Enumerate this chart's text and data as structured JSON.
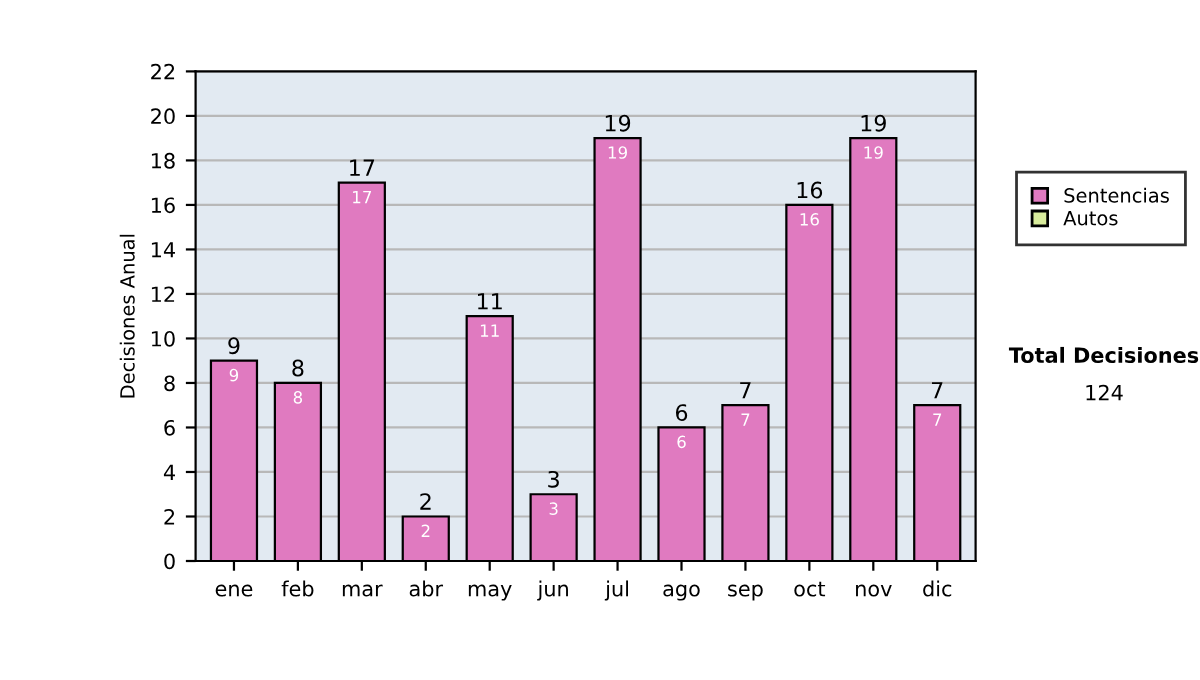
{
  "chart_data": {
    "type": "bar",
    "ylabel": "Decisiones Anual",
    "categories": [
      "ene",
      "feb",
      "mar",
      "abr",
      "may",
      "jun",
      "jul",
      "ago",
      "sep",
      "oct",
      "nov",
      "dic"
    ],
    "series": [
      {
        "name": "Sentencias",
        "color": "#e07ac0",
        "values": [
          9,
          8,
          17,
          2,
          11,
          3,
          19,
          6,
          7,
          16,
          19,
          7
        ]
      },
      {
        "name": "Autos",
        "color": "#d8ec9c",
        "values": [
          null,
          null,
          null,
          null,
          null,
          null,
          null,
          null,
          null,
          null,
          null,
          null
        ]
      }
    ],
    "data_labels": true,
    "totals": [
      "9",
      "8",
      "17",
      "2",
      "11",
      "3",
      "19",
      "6",
      "7",
      "16",
      "19",
      "7"
    ],
    "ylim": [
      0,
      22
    ],
    "yticks": [
      0,
      2,
      4,
      6,
      8,
      10,
      12,
      14,
      16,
      18,
      20,
      22
    ],
    "grid": "y",
    "legend": "right",
    "annotations": [
      "Total Decisiones",
      "124"
    ]
  }
}
